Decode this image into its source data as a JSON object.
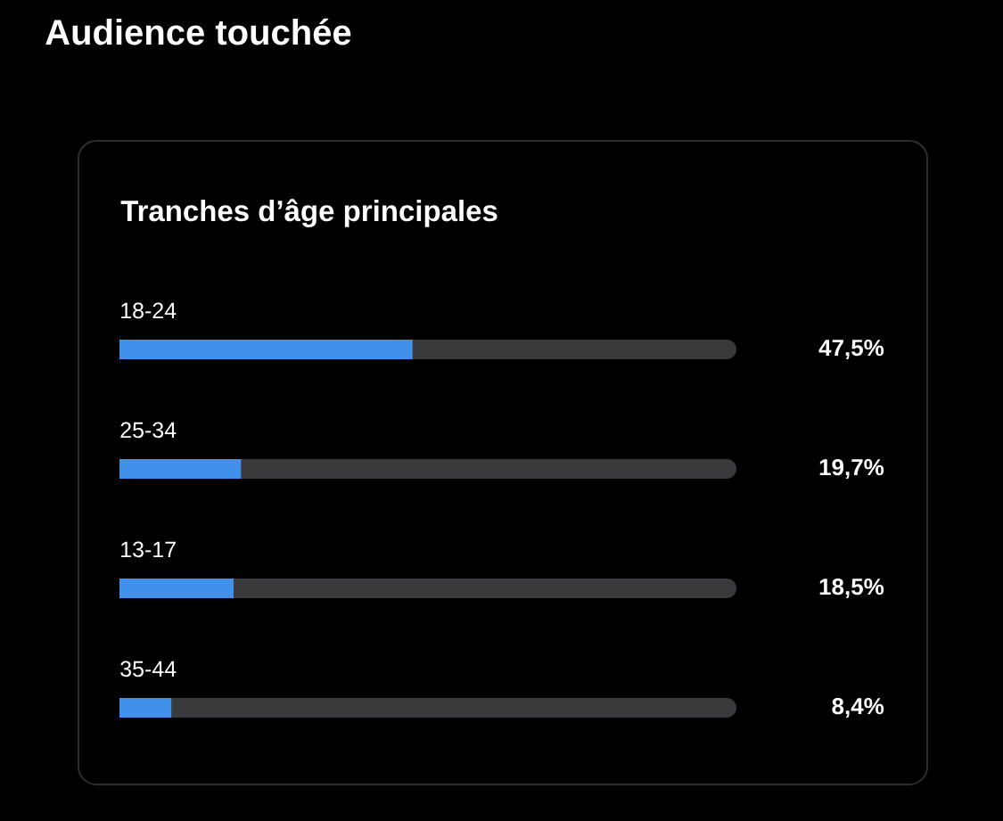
{
  "chart_data": {
    "type": "bar",
    "orientation": "horizontal",
    "title": "Audience touchée",
    "subtitle": "Tranches d’âge principales",
    "categories": [
      "18-24",
      "25-34",
      "13-17",
      "35-44"
    ],
    "values": [
      47.5,
      19.7,
      18.5,
      8.4
    ],
    "value_labels": [
      "47,5%",
      "19,7%",
      "18,5%",
      "8,4%"
    ],
    "color": "#4191ea",
    "xlim": [
      0,
      100
    ],
    "tick_labels": "y"
  }
}
